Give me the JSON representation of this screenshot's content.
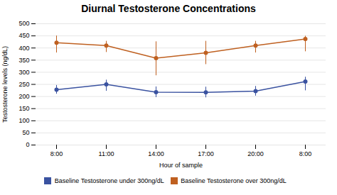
{
  "chart_data": {
    "type": "line",
    "title": "Diurnal Testosterone Concentrations",
    "xlabel": "Hour of sample",
    "ylabel": "Testosterone levels (ng/dL)",
    "categories": [
      "8:00",
      "11:00",
      "14:00",
      "17:00",
      "20:00",
      "8:00"
    ],
    "series": [
      {
        "name": "Baseline Testosterone under 300ng/dL",
        "color": "#3a52a0",
        "marker": "circle",
        "values": [
          228,
          250,
          218,
          217,
          222,
          262
        ],
        "error_low": [
          18,
          28,
          22,
          22,
          20,
          38
        ],
        "error_high": [
          18,
          18,
          22,
          22,
          20,
          18
        ]
      },
      {
        "name": "Baseline Testosterone over 300ng/dL",
        "color": "#bf6020",
        "marker": "circle",
        "values": [
          422,
          410,
          358,
          380,
          410,
          437
        ],
        "error_low": [
          42,
          28,
          72,
          48,
          30,
          52
        ],
        "error_high": [
          28,
          18,
          68,
          48,
          18,
          12
        ]
      }
    ],
    "ylim": [
      0,
      500
    ],
    "yticks": [
      0,
      50,
      100,
      150,
      200,
      250,
      300,
      350,
      400,
      450,
      500
    ],
    "grid": true,
    "legend": "bottom"
  }
}
